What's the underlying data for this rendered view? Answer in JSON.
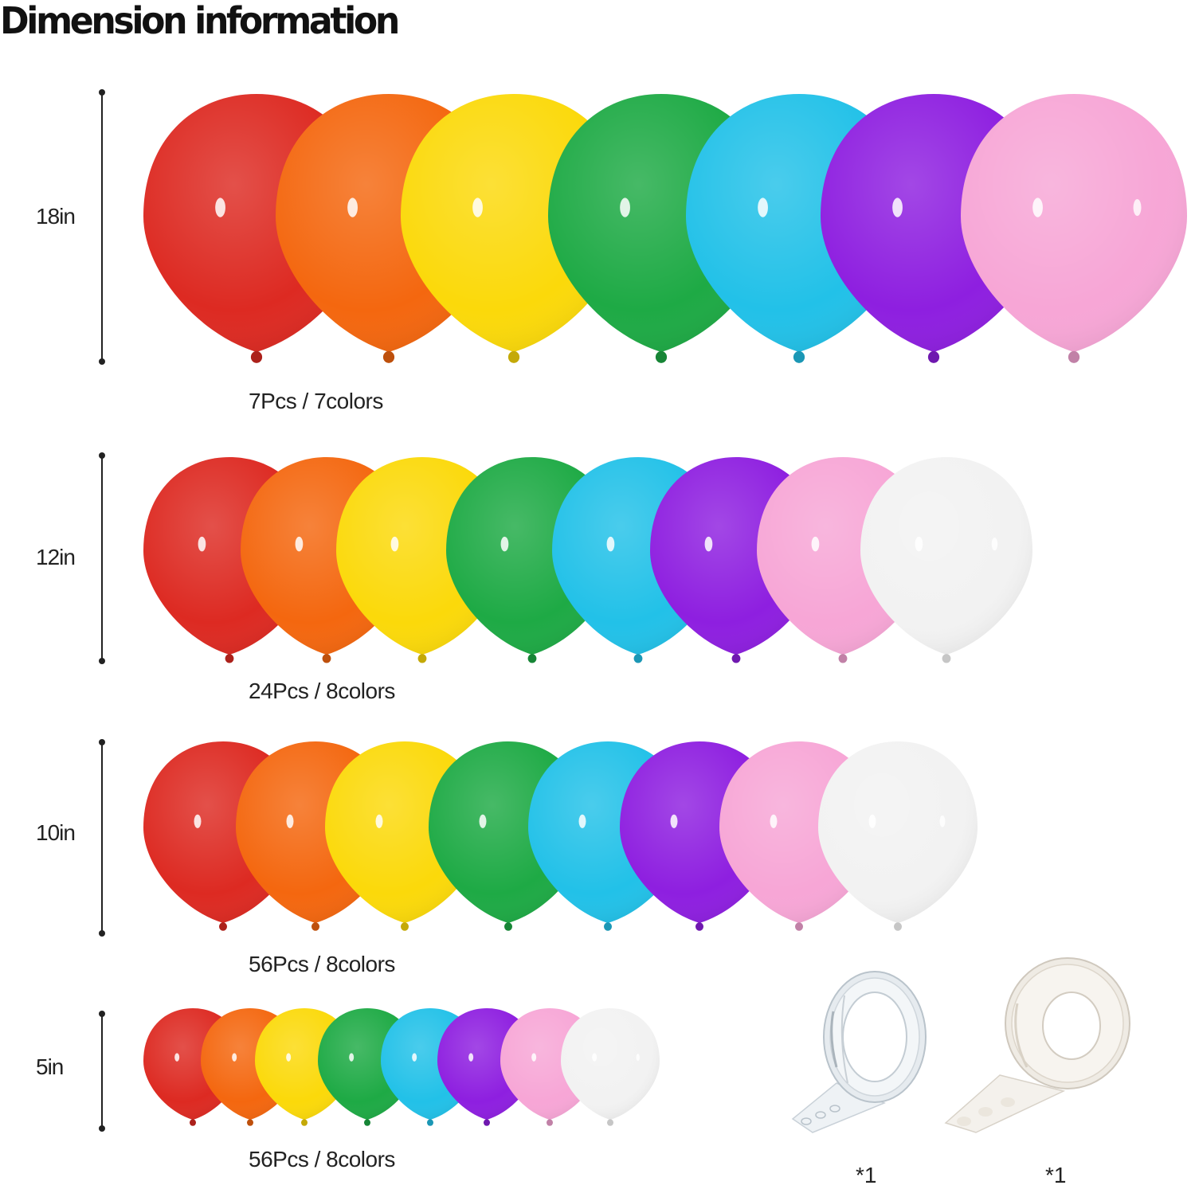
{
  "title": "Dimension information",
  "colors": {
    "red": "#dd2a22",
    "orange": "#f4670f",
    "yellow": "#fbd90a",
    "green": "#1eaa45",
    "blue": "#22c1e8",
    "purple": "#8e1fe0",
    "pink": "#f7a6d6",
    "white": "#f2f2f2"
  },
  "rows": [
    {
      "size": "18in",
      "count": "7Pcs / 7colors",
      "balloons": [
        "red",
        "orange",
        "yellow",
        "green",
        "blue",
        "purple",
        "pink"
      ]
    },
    {
      "size": "12in",
      "count": "24Pcs / 8colors",
      "balloons": [
        "red",
        "orange",
        "yellow",
        "green",
        "blue",
        "purple",
        "pink",
        "white"
      ]
    },
    {
      "size": "10in",
      "count": "56Pcs / 8colors",
      "balloons": [
        "red",
        "orange",
        "yellow",
        "green",
        "blue",
        "purple",
        "pink",
        "white"
      ]
    },
    {
      "size": "5in",
      "count": "56Pcs / 8colors",
      "balloons": [
        "red",
        "orange",
        "yellow",
        "green",
        "blue",
        "purple",
        "pink",
        "white"
      ]
    }
  ],
  "accessories": [
    {
      "icon": "balloon-strip-tape-roll-icon",
      "qty": "*1"
    },
    {
      "icon": "glue-dots-roll-icon",
      "qty": "*1"
    }
  ]
}
